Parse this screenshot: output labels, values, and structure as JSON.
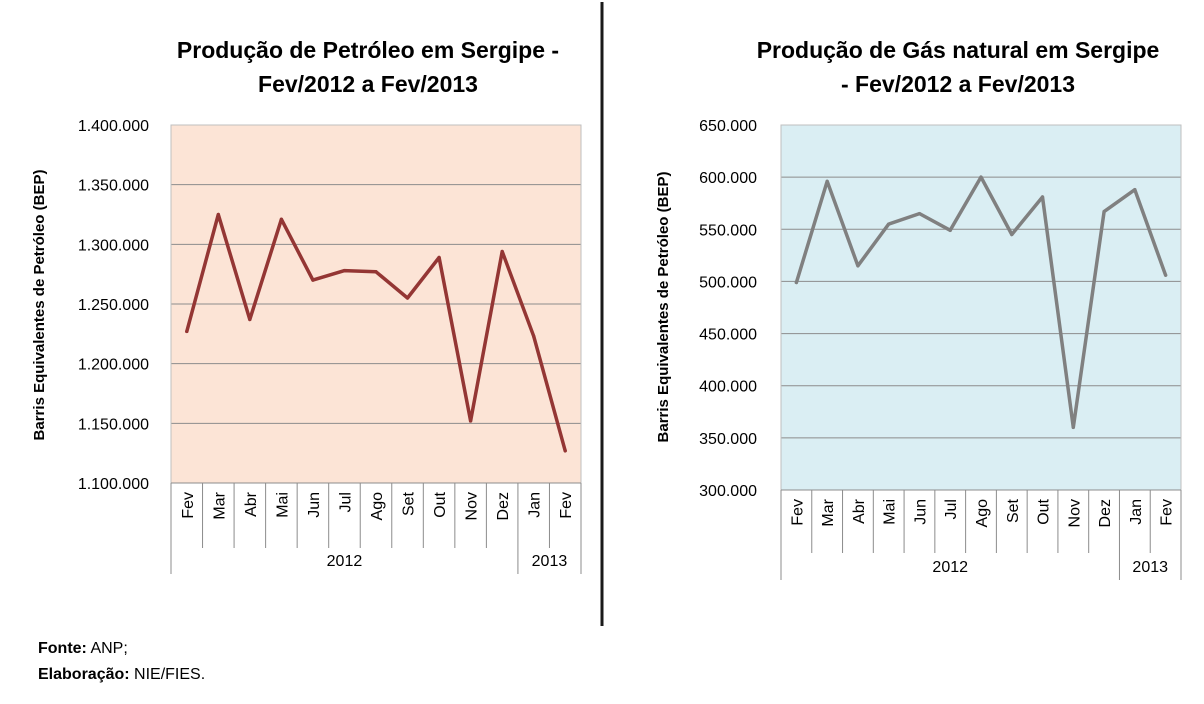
{
  "chart_data": [
    {
      "type": "line",
      "title": "Produção de Petróleo em Sergipe - Fev/2012 a Fev/2013",
      "title_lines": [
        "Produção de Petróleo em Sergipe -",
        "Fev/2012 a Fev/2013"
      ],
      "ylabel": "Barris Equivalentes de Petróleo (BEP)",
      "xlabel": "",
      "ylim": [
        1100000,
        1400000
      ],
      "yticks": [
        1100000,
        1150000,
        1200000,
        1250000,
        1300000,
        1350000,
        1400000
      ],
      "ytick_labels": [
        "1.100.000",
        "1.150.000",
        "1.200.000",
        "1.250.000",
        "1.300.000",
        "1.350.000",
        "1.400.000"
      ],
      "categories": [
        "Fev",
        "Mar",
        "Abr",
        "Mai",
        "Jun",
        "Jul",
        "Ago",
        "Set",
        "Out",
        "Nov",
        "Dez",
        "Jan",
        "Fev"
      ],
      "year_groups": [
        {
          "label": "2012",
          "count": 11
        },
        {
          "label": "2013",
          "count": 2
        }
      ],
      "series": [
        {
          "name": "Produção de Petróleo",
          "values": [
            1227000,
            1325000,
            1237000,
            1321000,
            1270000,
            1278000,
            1277000,
            1255000,
            1289000,
            1152000,
            1294000,
            1223000,
            1127000
          ]
        }
      ],
      "grid": true,
      "legend": "none",
      "plot_bg": "#fce4d6",
      "line_color": "#943634",
      "grid_color": "#8c8c8c"
    },
    {
      "type": "line",
      "title": "Produção de Gás natural em Sergipe - Fev/2012 a Fev/2013",
      "title_lines": [
        "Produção de Gás natural em Sergipe",
        "- Fev/2012 a Fev/2013"
      ],
      "ylabel": "Barris Equivalentes de Petróleo (BEP)",
      "xlabel": "",
      "ylim": [
        300000,
        650000
      ],
      "yticks": [
        300000,
        350000,
        400000,
        450000,
        500000,
        550000,
        600000,
        650000
      ],
      "ytick_labels": [
        "300.000",
        "350.000",
        "400.000",
        "450.000",
        "500.000",
        "550.000",
        "600.000",
        "650.000"
      ],
      "categories": [
        "Fev",
        "Mar",
        "Abr",
        "Mai",
        "Jun",
        "Jul",
        "Ago",
        "Set",
        "Out",
        "Nov",
        "Dez",
        "Jan",
        "Fev"
      ],
      "year_groups": [
        {
          "label": "2012",
          "count": 11
        },
        {
          "label": "2013",
          "count": 2
        }
      ],
      "series": [
        {
          "name": "Produção de Gás natural",
          "values": [
            499000,
            596000,
            515000,
            555000,
            565000,
            549000,
            600000,
            545000,
            581000,
            360000,
            567000,
            588000,
            506000
          ]
        }
      ],
      "grid": true,
      "legend": "none",
      "plot_bg": "#daeef3",
      "line_color": "#808080",
      "grid_color": "#8c8c8c"
    }
  ],
  "divider_color": "#1a1a1a",
  "footer": {
    "source_label": "Fonte:",
    "source_value": " ANP;",
    "elab_label": "Elaboração:",
    "elab_value": " NIE/FIES."
  }
}
